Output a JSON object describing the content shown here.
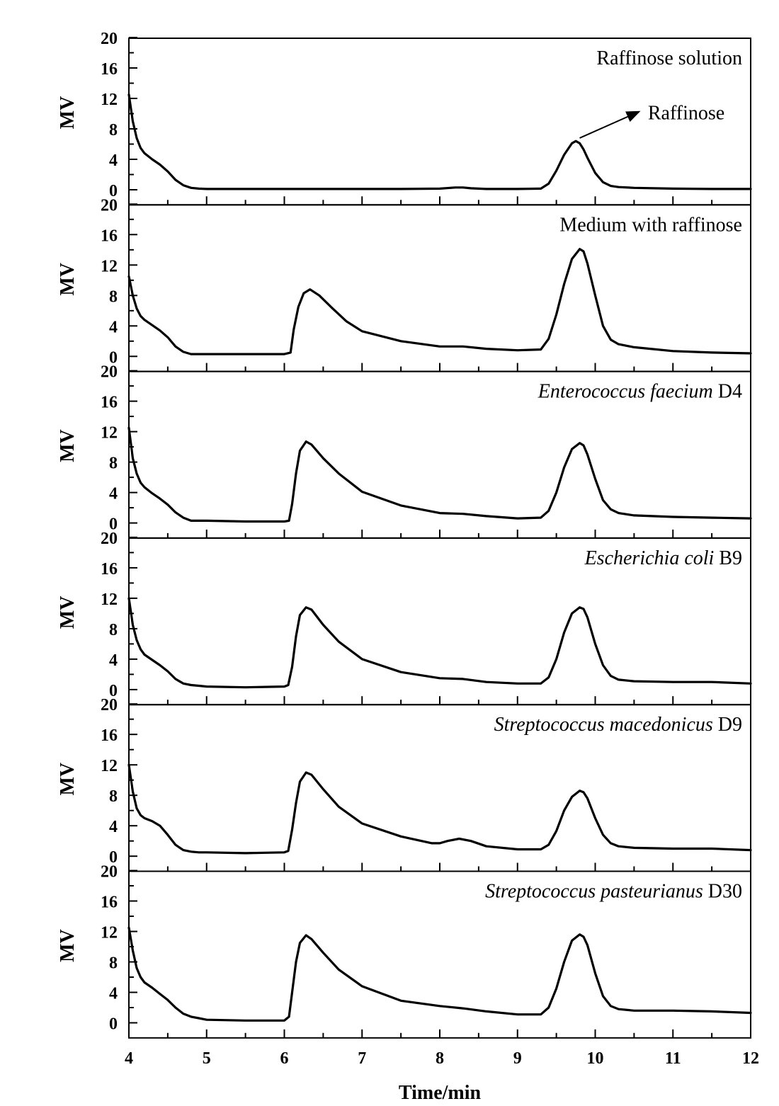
{
  "chart_data": {
    "type": "line",
    "xlabel": "Time/min",
    "ylabel": "MV",
    "xlim": [
      4,
      12
    ],
    "ylim": [
      0,
      20
    ],
    "x_ticks": [
      "4",
      "5",
      "6",
      "7",
      "8",
      "9",
      "10",
      "11",
      "12"
    ],
    "y_ticks": [
      "0",
      "4",
      "8",
      "12",
      "16",
      "20"
    ],
    "grid": false,
    "panels": [
      {
        "title": "Raffinose solution",
        "title_italic": "",
        "title_suffix": "",
        "annotation": {
          "text": "Raffinose",
          "from": [
            9.8,
            6.8
          ],
          "to": [
            10.55,
            10.2
          ]
        },
        "series": [
          {
            "x": [
              4.0,
              4.05,
              4.1,
              4.15,
              4.2,
              4.3,
              4.4,
              4.5,
              4.6,
              4.7,
              4.8,
              4.9,
              5.0,
              5.5,
              6.0,
              7.0,
              7.5,
              8.0,
              8.2,
              8.3,
              8.4,
              8.6,
              9.0,
              9.3,
              9.4,
              9.5,
              9.6,
              9.7,
              9.75,
              9.8,
              9.85,
              9.9,
              10.0,
              10.1,
              10.2,
              10.3,
              10.5,
              11.0,
              11.5,
              12.0
            ],
            "y": [
              12.5,
              9.0,
              6.8,
              5.5,
              4.8,
              4.0,
              3.3,
              2.4,
              1.3,
              0.6,
              0.25,
              0.15,
              0.1,
              0.1,
              0.1,
              0.1,
              0.1,
              0.15,
              0.3,
              0.3,
              0.2,
              0.1,
              0.1,
              0.15,
              0.8,
              2.5,
              4.6,
              6.1,
              6.4,
              6.1,
              5.3,
              4.2,
              2.2,
              1.0,
              0.5,
              0.35,
              0.25,
              0.15,
              0.1,
              0.1
            ]
          }
        ]
      },
      {
        "title": "Medium with raffinose",
        "title_italic": "",
        "title_suffix": "",
        "series": [
          {
            "x": [
              4.0,
              4.05,
              4.1,
              4.15,
              4.2,
              4.3,
              4.4,
              4.5,
              4.6,
              4.7,
              4.8,
              4.9,
              5.0,
              5.5,
              6.0,
              6.08,
              6.12,
              6.18,
              6.25,
              6.33,
              6.45,
              6.6,
              6.8,
              7.0,
              7.5,
              8.0,
              8.3,
              8.6,
              9.0,
              9.3,
              9.4,
              9.5,
              9.6,
              9.7,
              9.8,
              9.85,
              9.9,
              10.0,
              10.1,
              10.2,
              10.3,
              10.5,
              11.0,
              11.5,
              12.0
            ],
            "y": [
              10.5,
              8.0,
              6.3,
              5.3,
              4.8,
              4.1,
              3.4,
              2.5,
              1.3,
              0.6,
              0.3,
              0.3,
              0.3,
              0.3,
              0.3,
              0.5,
              3.5,
              6.5,
              8.3,
              8.8,
              8.0,
              6.5,
              4.6,
              3.3,
              2.0,
              1.3,
              1.3,
              1.0,
              0.8,
              0.9,
              2.3,
              5.5,
              9.5,
              12.8,
              14.1,
              13.8,
              12.2,
              8.0,
              4.0,
              2.2,
              1.6,
              1.2,
              0.7,
              0.5,
              0.4
            ]
          }
        ]
      },
      {
        "title": "",
        "title_italic": "Enterococcus faecium",
        "title_suffix": " D4",
        "series": [
          {
            "x": [
              4.0,
              4.05,
              4.1,
              4.15,
              4.2,
              4.3,
              4.4,
              4.5,
              4.6,
              4.7,
              4.8,
              4.9,
              5.0,
              5.5,
              6.0,
              6.06,
              6.1,
              6.15,
              6.2,
              6.28,
              6.35,
              6.5,
              6.7,
              7.0,
              7.5,
              8.0,
              8.3,
              8.6,
              9.0,
              9.3,
              9.4,
              9.5,
              9.6,
              9.7,
              9.8,
              9.85,
              9.9,
              10.0,
              10.1,
              10.2,
              10.3,
              10.5,
              11.0,
              11.5,
              12.0
            ],
            "y": [
              12.5,
              8.5,
              6.5,
              5.3,
              4.7,
              3.9,
              3.2,
              2.4,
              1.4,
              0.7,
              0.3,
              0.3,
              0.3,
              0.2,
              0.2,
              0.3,
              2.5,
              6.5,
              9.5,
              10.7,
              10.3,
              8.5,
              6.5,
              4.1,
              2.3,
              1.3,
              1.2,
              0.9,
              0.6,
              0.7,
              1.6,
              4.0,
              7.3,
              9.7,
              10.5,
              10.2,
              9.0,
              5.8,
              3.0,
              1.8,
              1.3,
              1.0,
              0.8,
              0.7,
              0.6
            ]
          }
        ]
      },
      {
        "title": "",
        "title_italic": "Escherichia coli",
        "title_suffix": " B9",
        "series": [
          {
            "x": [
              4.0,
              4.05,
              4.1,
              4.15,
              4.2,
              4.3,
              4.4,
              4.5,
              4.6,
              4.7,
              4.8,
              4.9,
              5.0,
              5.5,
              6.0,
              6.05,
              6.1,
              6.15,
              6.2,
              6.28,
              6.35,
              6.5,
              6.7,
              7.0,
              7.5,
              8.0,
              8.3,
              8.6,
              9.0,
              9.3,
              9.4,
              9.5,
              9.6,
              9.7,
              9.8,
              9.85,
              9.9,
              10.0,
              10.1,
              10.2,
              10.3,
              10.5,
              11.0,
              11.5,
              12.0
            ],
            "y": [
              12.0,
              8.5,
              6.5,
              5.3,
              4.6,
              3.9,
              3.2,
              2.4,
              1.4,
              0.8,
              0.6,
              0.5,
              0.4,
              0.3,
              0.4,
              0.6,
              3.0,
              7.0,
              9.8,
              10.8,
              10.5,
              8.5,
              6.3,
              4.0,
              2.3,
              1.5,
              1.4,
              1.0,
              0.8,
              0.8,
              1.6,
              4.0,
              7.5,
              10.0,
              10.8,
              10.6,
              9.5,
              6.0,
              3.2,
              1.8,
              1.3,
              1.1,
              1.0,
              1.0,
              0.8
            ]
          }
        ]
      },
      {
        "title": "",
        "title_italic": "Streptococcus macedonicus",
        "title_suffix": " D9",
        "series": [
          {
            "x": [
              4.0,
              4.05,
              4.1,
              4.15,
              4.2,
              4.3,
              4.4,
              4.5,
              4.6,
              4.7,
              4.8,
              4.9,
              5.0,
              5.5,
              6.0,
              6.05,
              6.1,
              6.15,
              6.2,
              6.28,
              6.35,
              6.5,
              6.7,
              7.0,
              7.5,
              7.9,
              8.0,
              8.1,
              8.25,
              8.4,
              8.6,
              9.0,
              9.3,
              9.4,
              9.5,
              9.6,
              9.7,
              9.8,
              9.85,
              9.9,
              10.0,
              10.1,
              10.2,
              10.3,
              10.5,
              11.0,
              11.5,
              12.0
            ],
            "y": [
              12.0,
              8.5,
              6.3,
              5.4,
              5.0,
              4.6,
              4.0,
              2.8,
              1.5,
              0.8,
              0.6,
              0.5,
              0.5,
              0.4,
              0.5,
              0.7,
              3.5,
              7.0,
              9.8,
              11.0,
              10.7,
              8.8,
              6.5,
              4.3,
              2.6,
              1.7,
              1.7,
              2.0,
              2.3,
              2.0,
              1.3,
              0.9,
              0.9,
              1.5,
              3.3,
              6.0,
              7.8,
              8.6,
              8.4,
              7.6,
              5.0,
              2.8,
              1.7,
              1.3,
              1.1,
              1.0,
              1.0,
              0.8
            ]
          }
        ]
      },
      {
        "title": "",
        "title_italic": "Streptococcus pasteurianus",
        "title_suffix": " D30",
        "series": [
          {
            "x": [
              4.0,
              4.05,
              4.1,
              4.15,
              4.2,
              4.3,
              4.4,
              4.5,
              4.6,
              4.7,
              4.8,
              4.9,
              5.0,
              5.5,
              6.0,
              6.06,
              6.1,
              6.15,
              6.2,
              6.28,
              6.35,
              6.5,
              6.7,
              7.0,
              7.5,
              8.0,
              8.3,
              8.6,
              9.0,
              9.3,
              9.4,
              9.5,
              9.6,
              9.7,
              9.8,
              9.85,
              9.9,
              10.0,
              10.1,
              10.2,
              10.3,
              10.5,
              11.0,
              11.5,
              12.0
            ],
            "y": [
              12.5,
              9.5,
              7.2,
              6.0,
              5.3,
              4.6,
              3.8,
              3.0,
              2.0,
              1.2,
              0.8,
              0.6,
              0.4,
              0.3,
              0.3,
              0.8,
              4.0,
              8.0,
              10.5,
              11.5,
              11.0,
              9.2,
              7.0,
              4.8,
              2.9,
              2.2,
              1.9,
              1.5,
              1.1,
              1.1,
              2.0,
              4.5,
              8.0,
              10.8,
              11.6,
              11.3,
              10.2,
              6.5,
              3.5,
              2.2,
              1.8,
              1.6,
              1.6,
              1.5,
              1.3
            ]
          }
        ]
      }
    ]
  }
}
